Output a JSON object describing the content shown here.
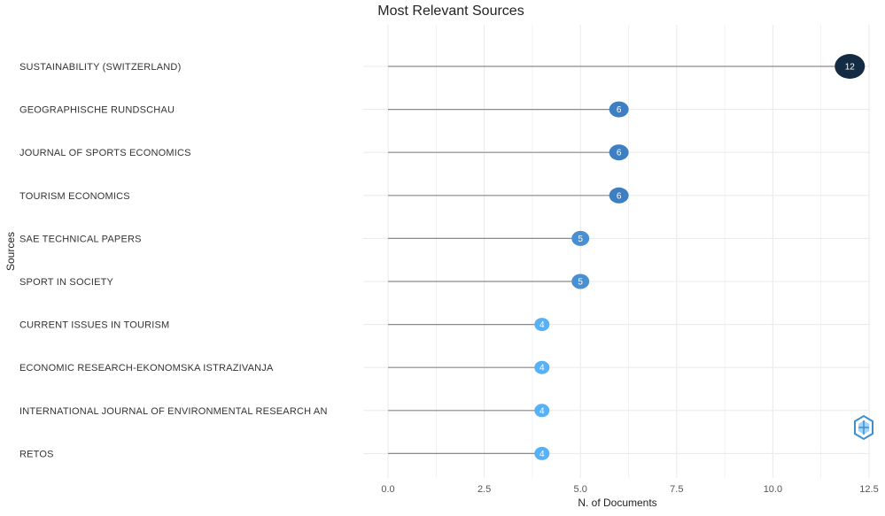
{
  "chart_data": {
    "type": "lollipop",
    "title": "Most Relevant Sources",
    "xlabel": "N. of Documents",
    "ylabel": "Sources",
    "xlim": [
      0,
      12.5
    ],
    "x_ticks": [
      "0.0",
      "2.5",
      "5.0",
      "7.5",
      "10.0",
      "12.5"
    ],
    "grid": true,
    "categories": [
      "SUSTAINABILITY (SWITZERLAND)",
      "GEOGRAPHISCHE RUNDSCHAU",
      "JOURNAL OF SPORTS ECONOMICS",
      "TOURISM ECONOMICS",
      "SAE TECHNICAL PAPERS",
      "SPORT IN SOCIETY",
      "CURRENT ISSUES IN TOURISM",
      "ECONOMIC RESEARCH-EKONOMSKA ISTRAZIVANJA",
      "INTERNATIONAL JOURNAL OF ENVIRONMENTAL RESEARCH AN",
      "RETOS"
    ],
    "values": [
      12,
      6,
      6,
      6,
      5,
      5,
      4,
      4,
      4,
      4
    ],
    "colors": [
      "#132b43",
      "#3d7fc2",
      "#3d7fc2",
      "#3d7fc2",
      "#4a8fd2",
      "#4a8fd2",
      "#56b1f7",
      "#56b1f7",
      "#56b1f7",
      "#56b1f7"
    ],
    "stem_color": "#8a8a8a",
    "grid_color": "#ebebeb"
  },
  "watermark": {
    "icon": "bibliometrix-logo-icon"
  }
}
